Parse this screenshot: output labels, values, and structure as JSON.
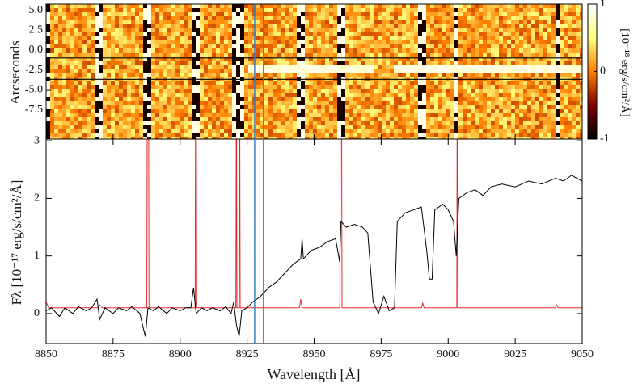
{
  "chart_data": [
    {
      "type": "image",
      "ylabel": "Arcseconds",
      "ylim": [
        -11.2,
        5.8
      ],
      "yticks": [
        {
          "value": 5,
          "label": "5.0"
        },
        {
          "value": 2.5,
          "label": "2.5"
        },
        {
          "value": 0,
          "label": "0.0"
        },
        {
          "value": -2.5,
          "label": "-2.5"
        },
        {
          "value": -5,
          "label": "-5.0"
        },
        {
          "value": -7.5,
          "label": "-7.5"
        }
      ],
      "aperture": [
        -1.0,
        -3.7
      ],
      "colorbar": {
        "label": "[10⁻¹⁸ erg/s/cm²/Å]",
        "lim": [
          -1,
          1
        ],
        "ticks": [
          1,
          0,
          -1
        ]
      }
    },
    {
      "type": "line",
      "xlabel": "Wavelength [Å]",
      "ylabel": "Fλ [10⁻¹⁷ erg/s/cm²/Å]",
      "xlim": [
        8850,
        9050
      ],
      "xticks": [
        8850,
        8875,
        8900,
        8925,
        8950,
        8975,
        9000,
        9025,
        9050
      ],
      "ylim": [
        -0.52,
        3.03
      ],
      "yticks": [
        0,
        1,
        2,
        3
      ],
      "markers_x": [
        8927.8,
        8931.1
      ],
      "marker_color": "#3a7fc1",
      "series": [
        {
          "color": "#000000",
          "x": [
            8850,
            8852,
            8855,
            8857,
            8860,
            8862,
            8865,
            8867,
            8869,
            8870,
            8872,
            8875,
            8877,
            8880,
            8882,
            8885,
            8886,
            8887,
            8888,
            8890,
            8892,
            8895,
            8897,
            8900,
            8902,
            8904,
            8905,
            8906,
            8908,
            8910,
            8912,
            8915,
            8917,
            8919,
            8920,
            8921,
            8922,
            8923,
            8925,
            8927,
            8930,
            8933,
            8936,
            8939,
            8942,
            8945,
            8945.5,
            8946,
            8949,
            8952,
            8955,
            8958,
            8959.5,
            8960,
            8962,
            8965,
            8968,
            8970,
            8972,
            8974,
            8976,
            8978,
            8980,
            8981,
            8984,
            8987,
            8990,
            8992,
            8993,
            8994,
            8995,
            8998,
            9000,
            9002,
            9003,
            9004,
            9007,
            9010,
            9013,
            9016,
            9020,
            9025,
            9030,
            9035,
            9040,
            9043,
            9046,
            9050
          ],
          "values": [
            0.05,
            0.1,
            -0.05,
            0.1,
            0.0,
            0.12,
            0.05,
            0.1,
            0.25,
            -0.1,
            0.1,
            0.0,
            0.1,
            0.05,
            0.12,
            0.0,
            -0.2,
            -0.4,
            0.1,
            0.05,
            0.12,
            0.0,
            0.1,
            0.05,
            0.1,
            0.1,
            0.45,
            0.0,
            0.1,
            0.05,
            0.1,
            0.05,
            0.12,
            0.0,
            0.2,
            -0.2,
            -0.4,
            0.05,
            0.1,
            0.2,
            0.3,
            0.45,
            0.55,
            0.7,
            0.85,
            0.95,
            1.3,
            0.95,
            1.1,
            1.15,
            1.25,
            1.3,
            0.9,
            1.6,
            1.5,
            1.55,
            1.5,
            1.4,
            0.2,
            0.0,
            0.3,
            0.05,
            0.1,
            1.6,
            1.75,
            1.8,
            1.85,
            1.1,
            0.6,
            0.6,
            1.8,
            1.9,
            1.8,
            1.6,
            1.0,
            2.0,
            2.1,
            2.15,
            2.05,
            2.2,
            2.25,
            2.2,
            2.3,
            2.25,
            2.35,
            2.3,
            2.4,
            2.3
          ]
        },
        {
          "color": "#e8262b",
          "x": [
            8850,
            8851,
            8869,
            8870,
            8871,
            8887.6,
            8887.8,
            8888.2,
            8888.4,
            8905.6,
            8905.8,
            8906,
            8906.2,
            8920.8,
            8921,
            8921.2,
            8922,
            8922.2,
            8922.4,
            8944.5,
            8945,
            8945.5,
            8959.6,
            8959.8,
            8960.2,
            8960.4,
            8975,
            8990,
            8990.5,
            8991,
            9003.2,
            9003.4,
            9003.6,
            9040,
            9040.5,
            9041,
            9050
          ],
          "values": [
            0.2,
            0.1,
            0.1,
            0.15,
            0.1,
            0.1,
            5,
            5,
            0.1,
            0.1,
            5,
            5,
            0.1,
            0.1,
            5,
            0.1,
            0.1,
            5,
            0.1,
            0.1,
            0.25,
            0.1,
            0.1,
            5,
            5,
            0.1,
            0.1,
            0.1,
            0.18,
            0.1,
            0.1,
            5,
            0.1,
            0.1,
            0.15,
            0.1,
            0.1
          ]
        }
      ]
    }
  ]
}
